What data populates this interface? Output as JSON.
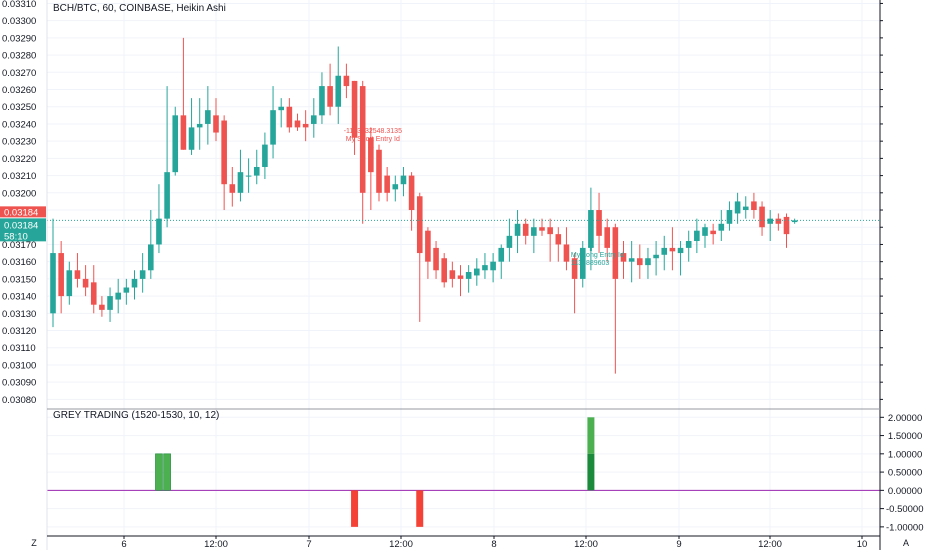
{
  "legend": {
    "main": "BCH/BTC, 60, COINBASE, Heikin Ashi",
    "indicator": "GREY TRADING (1520-1530, 10, 12)"
  },
  "buttons": {
    "left": "Z",
    "right": "A"
  },
  "colors": {
    "up": "#26a69a",
    "down": "#ef5350",
    "ind_up_light": "#4caf50",
    "ind_up_dark": "#1b8a3a",
    "ind_down": "#f44336",
    "zero_line": "#9c27b0",
    "last_price": "#26a69a",
    "sell_label": "#ef5350",
    "grid": "#f0f3fa",
    "axis": "#131722"
  },
  "chart_data": [
    {
      "type": "candlestick",
      "title": "BCH/BTC, 60, COINBASE, Heikin Ashi",
      "ylim": [
        0.03075,
        0.03312
      ],
      "y_ticks": [
        "0.03080",
        "0.03090",
        "0.03100",
        "0.03110",
        "0.03120",
        "0.03130",
        "0.03140",
        "0.03150",
        "0.03160",
        "0.03170",
        "0.03180",
        "0.03190",
        "0.03200",
        "0.03210",
        "0.03220",
        "0.03230",
        "0.03240",
        "0.03250",
        "0.03260",
        "0.03270",
        "0.03280",
        "0.03290",
        "0.03300",
        "0.03310"
      ],
      "x_ticks": [
        "6",
        "12:00",
        "7",
        "12:00",
        "8",
        "12:00",
        "9",
        "12:00",
        "10"
      ],
      "last_price_labels": [
        "0.03184",
        "0.03184",
        "58:10"
      ],
      "annotations": [
        {
          "text": "-1163432548.3135",
          "type": "sell"
        },
        {
          "text": "My Short Entry Id",
          "type": "sell"
        },
        {
          "text": "My Long Entry Id",
          "type": "buy"
        },
        {
          "text": "1135889603"
        }
      ],
      "series": [
        {
          "candles": [
            [
              0.0313,
              0.03185,
              0.03122,
              0.03165
            ],
            [
              0.03165,
              0.03172,
              0.0313,
              0.0314
            ],
            [
              0.0314,
              0.0316,
              0.03135,
              0.03155
            ],
            [
              0.03155,
              0.03165,
              0.03145,
              0.0315
            ],
            [
              0.0315,
              0.03158,
              0.0314,
              0.03145
            ],
            [
              0.03148,
              0.03158,
              0.0313,
              0.03135
            ],
            [
              0.03135,
              0.0314,
              0.03128,
              0.03132
            ],
            [
              0.03132,
              0.03145,
              0.03125,
              0.0314
            ],
            [
              0.03138,
              0.0315,
              0.0313,
              0.03142
            ],
            [
              0.03142,
              0.0315,
              0.03135,
              0.03145
            ],
            [
              0.03145,
              0.03155,
              0.03138,
              0.0315
            ],
            [
              0.0315,
              0.03165,
              0.03142,
              0.03155
            ],
            [
              0.03155,
              0.0319,
              0.0315,
              0.0317
            ],
            [
              0.0317,
              0.03205,
              0.03165,
              0.03185
            ],
            [
              0.03185,
              0.03262,
              0.0318,
              0.03212
            ],
            [
              0.03212,
              0.0325,
              0.0321,
              0.03245
            ],
            [
              0.03245,
              0.0329,
              0.03225,
              0.03225
            ],
            [
              0.03225,
              0.03255,
              0.03222,
              0.03238
            ],
            [
              0.03238,
              0.03255,
              0.03225,
              0.0324
            ],
            [
              0.0324,
              0.03262,
              0.03228,
              0.03248
            ],
            [
              0.03245,
              0.03255,
              0.0323,
              0.03235
            ],
            [
              0.03242,
              0.03245,
              0.0319,
              0.03205
            ],
            [
              0.03205,
              0.03215,
              0.03192,
              0.032
            ],
            [
              0.032,
              0.03225,
              0.03195,
              0.03212
            ],
            [
              0.0321,
              0.0322,
              0.032,
              0.0321
            ],
            [
              0.0321,
              0.03225,
              0.03205,
              0.03215
            ],
            [
              0.03215,
              0.03235,
              0.03208,
              0.03228
            ],
            [
              0.03228,
              0.03262,
              0.0322,
              0.03248
            ],
            [
              0.03248,
              0.03255,
              0.03238,
              0.0325
            ],
            [
              0.0325,
              0.03255,
              0.03235,
              0.03238
            ],
            [
              0.03242,
              0.03246,
              0.03236,
              0.03238
            ],
            [
              0.0324,
              0.03248,
              0.0323,
              0.03238
            ],
            [
              0.0324,
              0.03255,
              0.03232,
              0.03245
            ],
            [
              0.03245,
              0.0327,
              0.0324,
              0.03262
            ],
            [
              0.03262,
              0.03275,
              0.03245,
              0.0325
            ],
            [
              0.0325,
              0.03285,
              0.0324,
              0.03268
            ],
            [
              0.03268,
              0.03275,
              0.03255,
              0.03262
            ],
            [
              0.03265,
              0.03265,
              0.03222,
              0.03232
            ],
            [
              0.03262,
              0.03265,
              0.03182,
              0.032
            ],
            [
              0.03232,
              0.03238,
              0.0319,
              0.03212
            ],
            [
              0.03225,
              0.03228,
              0.03195,
              0.032
            ],
            [
              0.0321,
              0.03215,
              0.03195,
              0.032
            ],
            [
              0.03202,
              0.0321,
              0.03195,
              0.03205
            ],
            [
              0.03205,
              0.03215,
              0.03198,
              0.0321
            ],
            [
              0.0321,
              0.03212,
              0.03178,
              0.0319
            ],
            [
              0.03198,
              0.032,
              0.03125,
              0.03165
            ],
            [
              0.03178,
              0.0318,
              0.0315,
              0.0316
            ],
            [
              0.03168,
              0.03172,
              0.0315,
              0.03155
            ],
            [
              0.03162,
              0.03165,
              0.03145,
              0.03148
            ],
            [
              0.03155,
              0.0316,
              0.03145,
              0.0315
            ],
            [
              0.03152,
              0.03158,
              0.0314,
              0.0315
            ],
            [
              0.0315,
              0.03158,
              0.03142,
              0.03154
            ],
            [
              0.03152,
              0.03162,
              0.03146,
              0.03156
            ],
            [
              0.03155,
              0.03165,
              0.0315,
              0.03158
            ],
            [
              0.03155,
              0.03165,
              0.03148,
              0.0316
            ],
            [
              0.0316,
              0.0317,
              0.0315,
              0.03168
            ],
            [
              0.03168,
              0.03185,
              0.0316,
              0.03175
            ],
            [
              0.03175,
              0.0319,
              0.03165,
              0.03182
            ],
            [
              0.03182,
              0.03185,
              0.0317,
              0.03175
            ],
            [
              0.03175,
              0.03185,
              0.03165,
              0.0318
            ],
            [
              0.0318,
              0.03185,
              0.03175,
              0.03178
            ],
            [
              0.0318,
              0.03185,
              0.0316,
              0.03176
            ],
            [
              0.03176,
              0.0318,
              0.0316,
              0.0317
            ],
            [
              0.0317,
              0.0318,
              0.03155,
              0.0316
            ],
            [
              0.03162,
              0.03165,
              0.0313,
              0.0315
            ],
            [
              0.0315,
              0.03172,
              0.03145,
              0.03168
            ],
            [
              0.03168,
              0.03203,
              0.03155,
              0.0319
            ],
            [
              0.0319,
              0.032,
              0.03165,
              0.03175
            ],
            [
              0.0318,
              0.03185,
              0.0316,
              0.03168
            ],
            [
              0.0318,
              0.03182,
              0.03095,
              0.0315
            ],
            [
              0.03165,
              0.03172,
              0.0315,
              0.0316
            ],
            [
              0.0316,
              0.03172,
              0.03148,
              0.03162
            ],
            [
              0.03162,
              0.0317,
              0.0315,
              0.03158
            ],
            [
              0.03158,
              0.03168,
              0.0315,
              0.03162
            ],
            [
              0.03162,
              0.03172,
              0.03152,
              0.03164
            ],
            [
              0.03164,
              0.03175,
              0.03155,
              0.03168
            ],
            [
              0.03168,
              0.0318,
              0.03155,
              0.03166
            ],
            [
              0.03165,
              0.03172,
              0.03152,
              0.03168
            ],
            [
              0.03168,
              0.03178,
              0.0316,
              0.03172
            ],
            [
              0.03172,
              0.03185,
              0.03165,
              0.03178
            ],
            [
              0.03175,
              0.03182,
              0.03168,
              0.0318
            ],
            [
              0.03178,
              0.03182,
              0.0317,
              0.03176
            ],
            [
              0.03178,
              0.0319,
              0.03172,
              0.03182
            ],
            [
              0.03182,
              0.03195,
              0.03178,
              0.0319
            ],
            [
              0.03188,
              0.032,
              0.03182,
              0.03195
            ],
            [
              0.0319,
              0.03198,
              0.03185,
              0.03192
            ],
            [
              0.03195,
              0.032,
              0.03185,
              0.0319
            ],
            [
              0.03192,
              0.03195,
              0.03175,
              0.0318
            ],
            [
              0.03182,
              0.0319,
              0.03172,
              0.03185
            ],
            [
              0.03185,
              0.03188,
              0.03178,
              0.03182
            ],
            [
              0.03186,
              0.03188,
              0.03168,
              0.03176
            ],
            [
              0.03183,
              0.03185,
              0.03182,
              0.03184
            ]
          ]
        }
      ]
    },
    {
      "type": "bar",
      "title": "GREY TRADING (1520-1530, 10, 12)",
      "ylim": [
        -1.25,
        2.2
      ],
      "y_ticks": [
        "2.00000",
        "1.50000",
        "1.00000",
        "0.50000",
        "0.00000",
        "-0.50000",
        "-1.00000"
      ],
      "series": [
        {
          "values": [
            {
              "bar_index": 13,
              "value": 1
            },
            {
              "bar_index": 14,
              "value": 1
            },
            {
              "bar_index": 37,
              "value": -1
            },
            {
              "bar_index": 45,
              "value": -1
            },
            {
              "bar_index": 66,
              "value": 2
            }
          ]
        }
      ]
    }
  ]
}
